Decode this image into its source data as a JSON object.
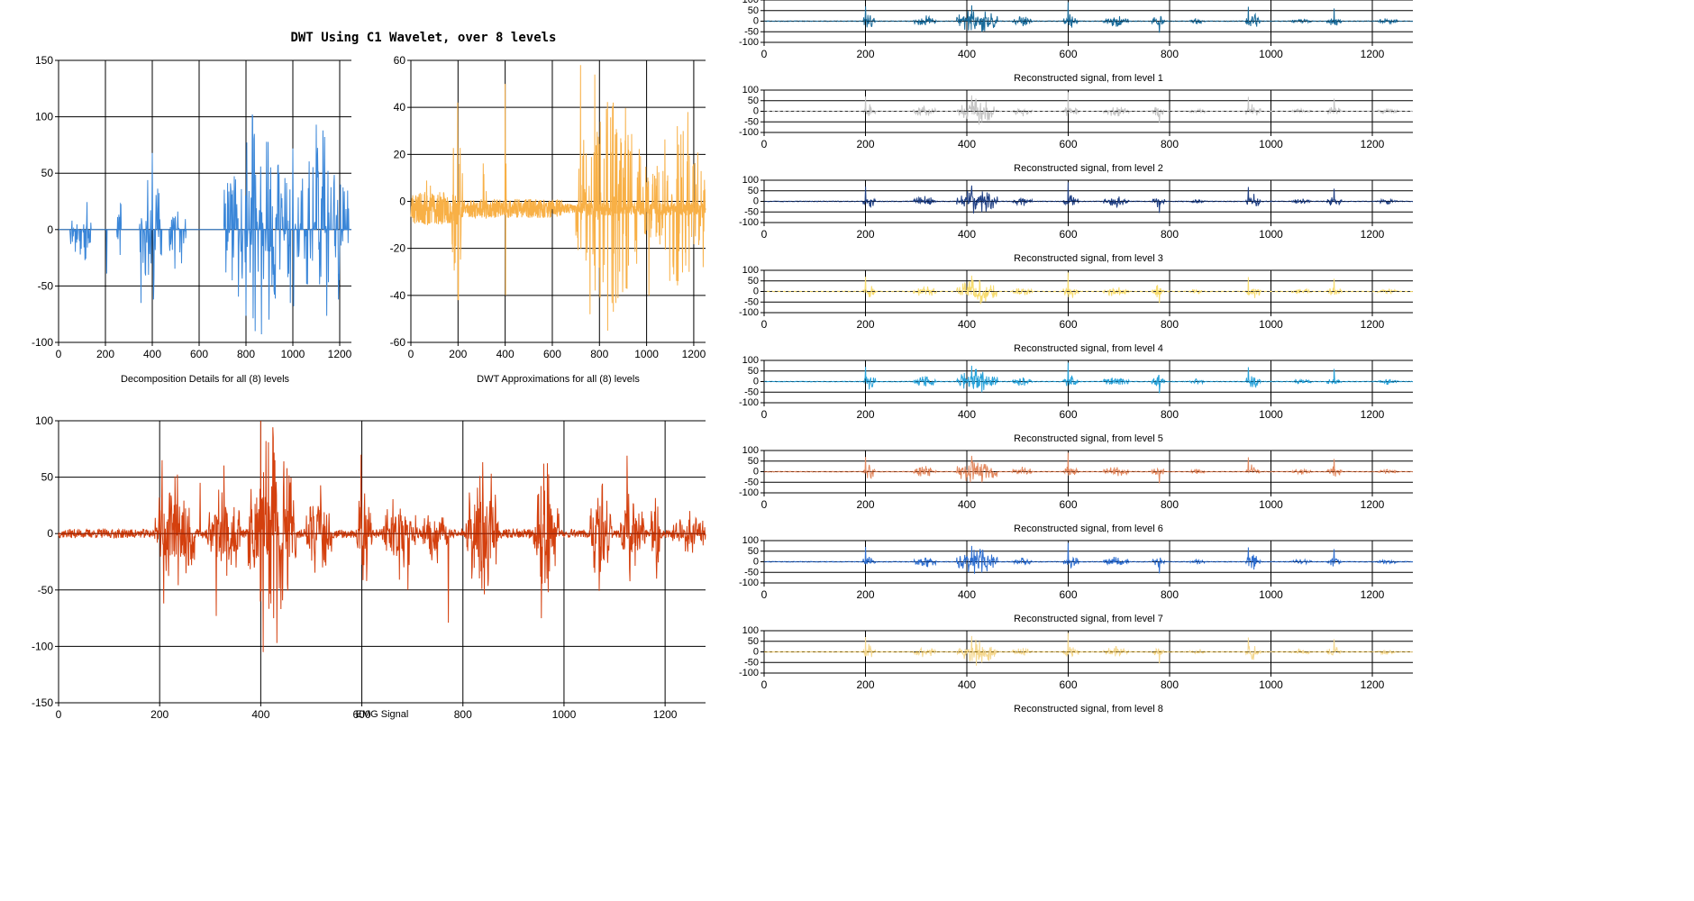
{
  "title": "DWT Using C1 Wavelet, over 8 levels",
  "chart_data": [
    {
      "id": "details",
      "type": "line",
      "xlabel": "Decomposition Details for all (8) levels",
      "xlim": [
        0,
        1250
      ],
      "ylim": [
        -100,
        150
      ],
      "xticks": [
        0,
        200,
        400,
        600,
        800,
        1000,
        1200
      ],
      "yticks": [
        -100,
        -50,
        0,
        50,
        100,
        150
      ],
      "color": "#3a86d8",
      "style": "sparse",
      "bursts": [
        [
          50,
          140,
          40
        ],
        [
          250,
          270,
          40
        ],
        [
          345,
          440,
          65
        ],
        [
          470,
          545,
          45
        ],
        [
          705,
          1000,
          100
        ],
        [
          1010,
          1240,
          90
        ]
      ],
      "spikes": [
        [
          400,
          68
        ],
        [
          405,
          -62
        ],
        [
          826,
          102
        ],
        [
          828,
          100
        ],
        [
          1000,
          72
        ],
        [
          1003,
          -68
        ],
        [
          1100,
          93
        ],
        [
          1195,
          -62
        ],
        [
          715,
          40
        ],
        [
          715,
          -38
        ],
        [
          840,
          -90
        ],
        [
          990,
          -65
        ],
        [
          352,
          -65
        ],
        [
          205,
          -39
        ]
      ]
    },
    {
      "id": "approx",
      "type": "line",
      "xlabel": "DWT Approximations for all (8) levels",
      "xlim": [
        0,
        1250
      ],
      "ylim": [
        -60,
        60
      ],
      "xticks": [
        0,
        200,
        400,
        600,
        800,
        1000,
        1200
      ],
      "yticks": [
        -60,
        -40,
        -20,
        0,
        20,
        40,
        60
      ],
      "color": "#f8b046",
      "style": "dense-band",
      "bias": -3,
      "band": [
        [
          0,
          200,
          7
        ],
        [
          200,
          640,
          4
        ],
        [
          640,
          720,
          2
        ],
        [
          720,
          1250,
          3
        ]
      ],
      "bursts": [
        [
          65,
          85,
          20
        ],
        [
          170,
          220,
          42
        ],
        [
          300,
          320,
          22
        ],
        [
          390,
          410,
          48
        ],
        [
          700,
          1000,
          55
        ],
        [
          1000,
          1250,
          40
        ]
      ],
      "spikes": [
        [
          198,
          42
        ],
        [
          202,
          -42
        ],
        [
          400,
          50
        ],
        [
          402,
          -40
        ],
        [
          720,
          58
        ],
        [
          780,
          54
        ],
        [
          835,
          -55
        ],
        [
          760,
          -48
        ],
        [
          858,
          42
        ],
        [
          1175,
          38
        ],
        [
          1240,
          -28
        ],
        [
          1010,
          -40
        ],
        [
          1130,
          32
        ],
        [
          1180,
          -30
        ],
        [
          200,
          -42
        ]
      ]
    },
    {
      "id": "emg",
      "type": "line",
      "xlabel": "EMG Signal",
      "xlim": [
        0,
        1280
      ],
      "ylim": [
        -150,
        100
      ],
      "xticks": [
        0,
        200,
        400,
        600,
        800,
        1000,
        1200
      ],
      "yticks": [
        -150,
        -100,
        -50,
        0,
        50,
        100
      ],
      "color": "#d4400e",
      "accent": "#8a1f05",
      "style": "emg",
      "noise": 4,
      "bursts": [
        [
          190,
          270,
          60
        ],
        [
          295,
          360,
          60
        ],
        [
          375,
          470,
          100
        ],
        [
          490,
          540,
          50
        ],
        [
          590,
          620,
          55
        ],
        [
          640,
          710,
          45
        ],
        [
          720,
          770,
          30
        ],
        [
          805,
          870,
          75
        ],
        [
          940,
          990,
          65
        ],
        [
          1050,
          1095,
          52
        ],
        [
          1110,
          1160,
          48
        ],
        [
          1170,
          1190,
          60
        ],
        [
          1215,
          1280,
          22
        ]
      ],
      "spikes": [
        [
          205,
          65
        ],
        [
          208,
          -62
        ],
        [
          400,
          100
        ],
        [
          405,
          -105
        ],
        [
          425,
          85
        ],
        [
          432,
          -97
        ],
        [
          410,
          82
        ],
        [
          598,
          70
        ],
        [
          771,
          -79
        ],
        [
          856,
          53
        ],
        [
          960,
          62
        ],
        [
          955,
          -75
        ],
        [
          1125,
          69
        ],
        [
          312,
          -73
        ],
        [
          691,
          -50
        ],
        [
          280,
          45
        ]
      ]
    }
  ],
  "recon": {
    "xlim": [
      0,
      1280
    ],
    "ylim": [
      -100,
      100
    ],
    "xticks": [
      0,
      200,
      400,
      600,
      800,
      1000,
      1200
    ],
    "yticks": [
      100,
      50,
      0,
      -50,
      -100
    ],
    "bursts": [
      [
        195,
        220,
        40
      ],
      [
        295,
        340,
        30
      ],
      [
        380,
        460,
        70
      ],
      [
        490,
        530,
        25
      ],
      [
        590,
        620,
        35
      ],
      [
        670,
        720,
        28
      ],
      [
        765,
        790,
        35
      ],
      [
        840,
        870,
        15
      ],
      [
        950,
        980,
        40
      ],
      [
        1040,
        1080,
        15
      ],
      [
        1110,
        1140,
        28
      ],
      [
        1210,
        1250,
        15
      ]
    ],
    "spikes": [
      [
        200,
        70
      ],
      [
        600,
        90
      ],
      [
        955,
        68
      ],
      [
        1125,
        60
      ],
      [
        410,
        75
      ],
      [
        430,
        -50
      ],
      [
        780,
        -55
      ]
    ],
    "levels": [
      {
        "label": "Reconstructed signal, from level 1",
        "color": "#1a6b9a",
        "accent": "#0e3850"
      },
      {
        "label": "Reconstructed signal, from level 2",
        "color": "#c4c4c4",
        "accent": "#333333"
      },
      {
        "label": "Reconstructed signal, from level 3",
        "color": "#1f3f83",
        "accent": "#0b1d45"
      },
      {
        "label": "Reconstructed signal, from level 4",
        "color": "#f7dc6f",
        "accent": "#333333"
      },
      {
        "label": "Reconstructed signal, from level 5",
        "color": "#29a3da",
        "accent": "#0c5f86"
      },
      {
        "label": "Reconstructed signal, from level 6",
        "color": "#e2885f",
        "accent": "#8a3b18"
      },
      {
        "label": "Reconstructed signal, from level 7",
        "color": "#2f6fd0",
        "accent": "#123c82"
      },
      {
        "label": "Reconstructed signal, from level 8",
        "color": "#f4d78e",
        "accent": "#8a6a12"
      }
    ]
  }
}
